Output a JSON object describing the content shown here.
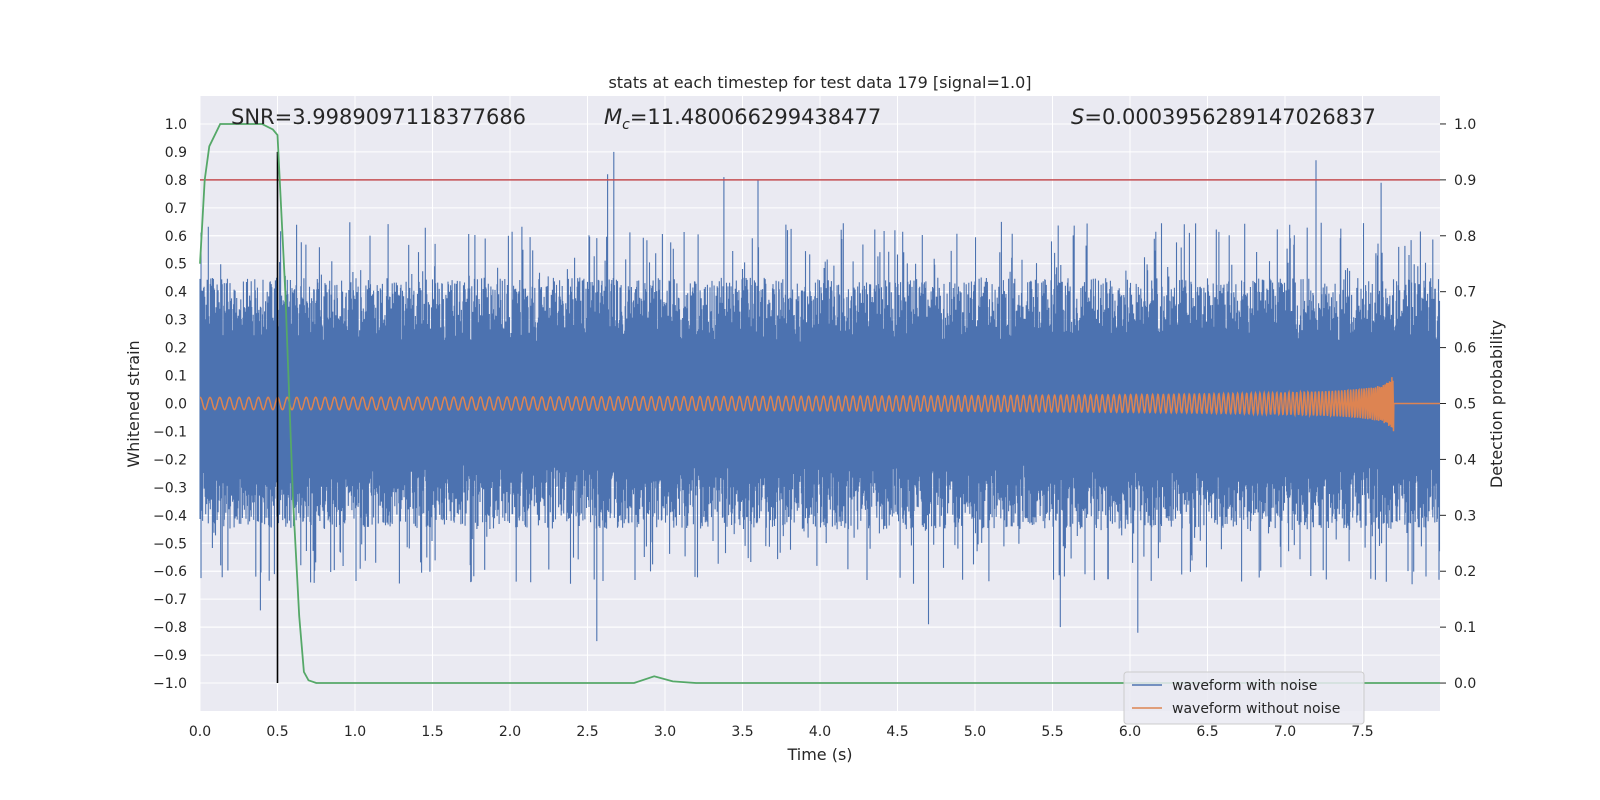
{
  "chart_data": {
    "type": "line",
    "title": "stats at each timestep for test data 179 [signal=1.0]",
    "xlabel": "Time (s)",
    "ylabel": "Whitened strain",
    "y2label": "Detection probability",
    "xlim": [
      0.0,
      8.0
    ],
    "ylim": [
      -1.1,
      1.1
    ],
    "y2lim": [
      -0.05,
      1.05
    ],
    "xticks": [
      "0.0",
      "0.5",
      "1.0",
      "1.5",
      "2.0",
      "2.5",
      "3.0",
      "3.5",
      "4.0",
      "4.5",
      "5.0",
      "5.5",
      "6.0",
      "6.5",
      "7.0",
      "7.5"
    ],
    "yticks": [
      "1.0",
      "0.9",
      "0.8",
      "0.7",
      "0.6",
      "0.5",
      "0.4",
      "0.3",
      "0.2",
      "0.1",
      "0.0",
      "−0.1",
      "−0.2",
      "−0.3",
      "−0.4",
      "−0.5",
      "−0.6",
      "−0.7",
      "−0.8",
      "−0.9",
      "−1.0"
    ],
    "y2ticks": [
      "1.0",
      "0.9",
      "0.8",
      "0.7",
      "0.6",
      "0.5",
      "0.4",
      "0.3",
      "0.2",
      "0.1",
      "0.0"
    ],
    "annotations": {
      "snr": "SNR=3.9989097118377686",
      "mc_symbol": "M",
      "mc_sub": "c",
      "mc_value": "=11.480066299438477",
      "s_symbol": "S",
      "s_value": "=0.0003956289147026837"
    },
    "series": [
      {
        "name": "waveform with noise",
        "color": "#4c72b0",
        "description": "dense whitened noisy strain, typical amplitude about ±0.45 with spikes",
        "peaks": [
          {
            "x": 2.67,
            "y": 0.9
          },
          {
            "x": 2.63,
            "y": 0.82
          },
          {
            "x": 3.38,
            "y": 0.81
          },
          {
            "x": 3.6,
            "y": 0.8
          },
          {
            "x": 7.2,
            "y": 0.87
          },
          {
            "x": 7.62,
            "y": 0.79
          },
          {
            "x": 2.56,
            "y": -0.85
          },
          {
            "x": 6.05,
            "y": -0.82
          },
          {
            "x": 5.55,
            "y": -0.8
          },
          {
            "x": 4.7,
            "y": -0.79
          },
          {
            "x": 0.39,
            "y": -0.74
          }
        ]
      },
      {
        "name": "waveform without noise",
        "color": "#dd8452",
        "description": "chirp: small oscillation near 0.0 growing to about ±0.11 at merger",
        "merger_time": 7.7,
        "max_amplitude": 0.11
      },
      {
        "name": "detection probability",
        "color": "#55a868",
        "axis": "right",
        "x": [
          0.0,
          0.03,
          0.06,
          0.13,
          0.2,
          0.3,
          0.4,
          0.47,
          0.5,
          0.55,
          0.6,
          0.64,
          0.67,
          0.7,
          0.75,
          0.8,
          1.0,
          2.0,
          2.8,
          2.93,
          3.05,
          3.2,
          3.8,
          4.5,
          8.0
        ],
        "y": [
          0.75,
          0.9,
          0.96,
          1.0,
          1.0,
          1.0,
          1.0,
          0.99,
          0.98,
          0.7,
          0.33,
          0.12,
          0.02,
          0.005,
          0.0,
          0.0,
          0.0,
          0.0,
          0.0,
          0.012,
          0.003,
          0.0,
          0.0,
          0.0,
          0.0
        ]
      }
    ],
    "threshold": {
      "color": "#c44e52",
      "value": 0.9,
      "axis": "right"
    },
    "marker_line": {
      "color": "#000000",
      "x": 0.5,
      "y_from": -1.0,
      "y_to": 0.9
    },
    "legend": {
      "location": "lower-right",
      "entries": [
        {
          "label": "waveform with noise",
          "color": "#4c72b0"
        },
        {
          "label": "waveform without noise",
          "color": "#dd8452"
        }
      ]
    },
    "style": {
      "plot_background": "#eaeaf2",
      "grid_color": "#ffffff"
    }
  }
}
